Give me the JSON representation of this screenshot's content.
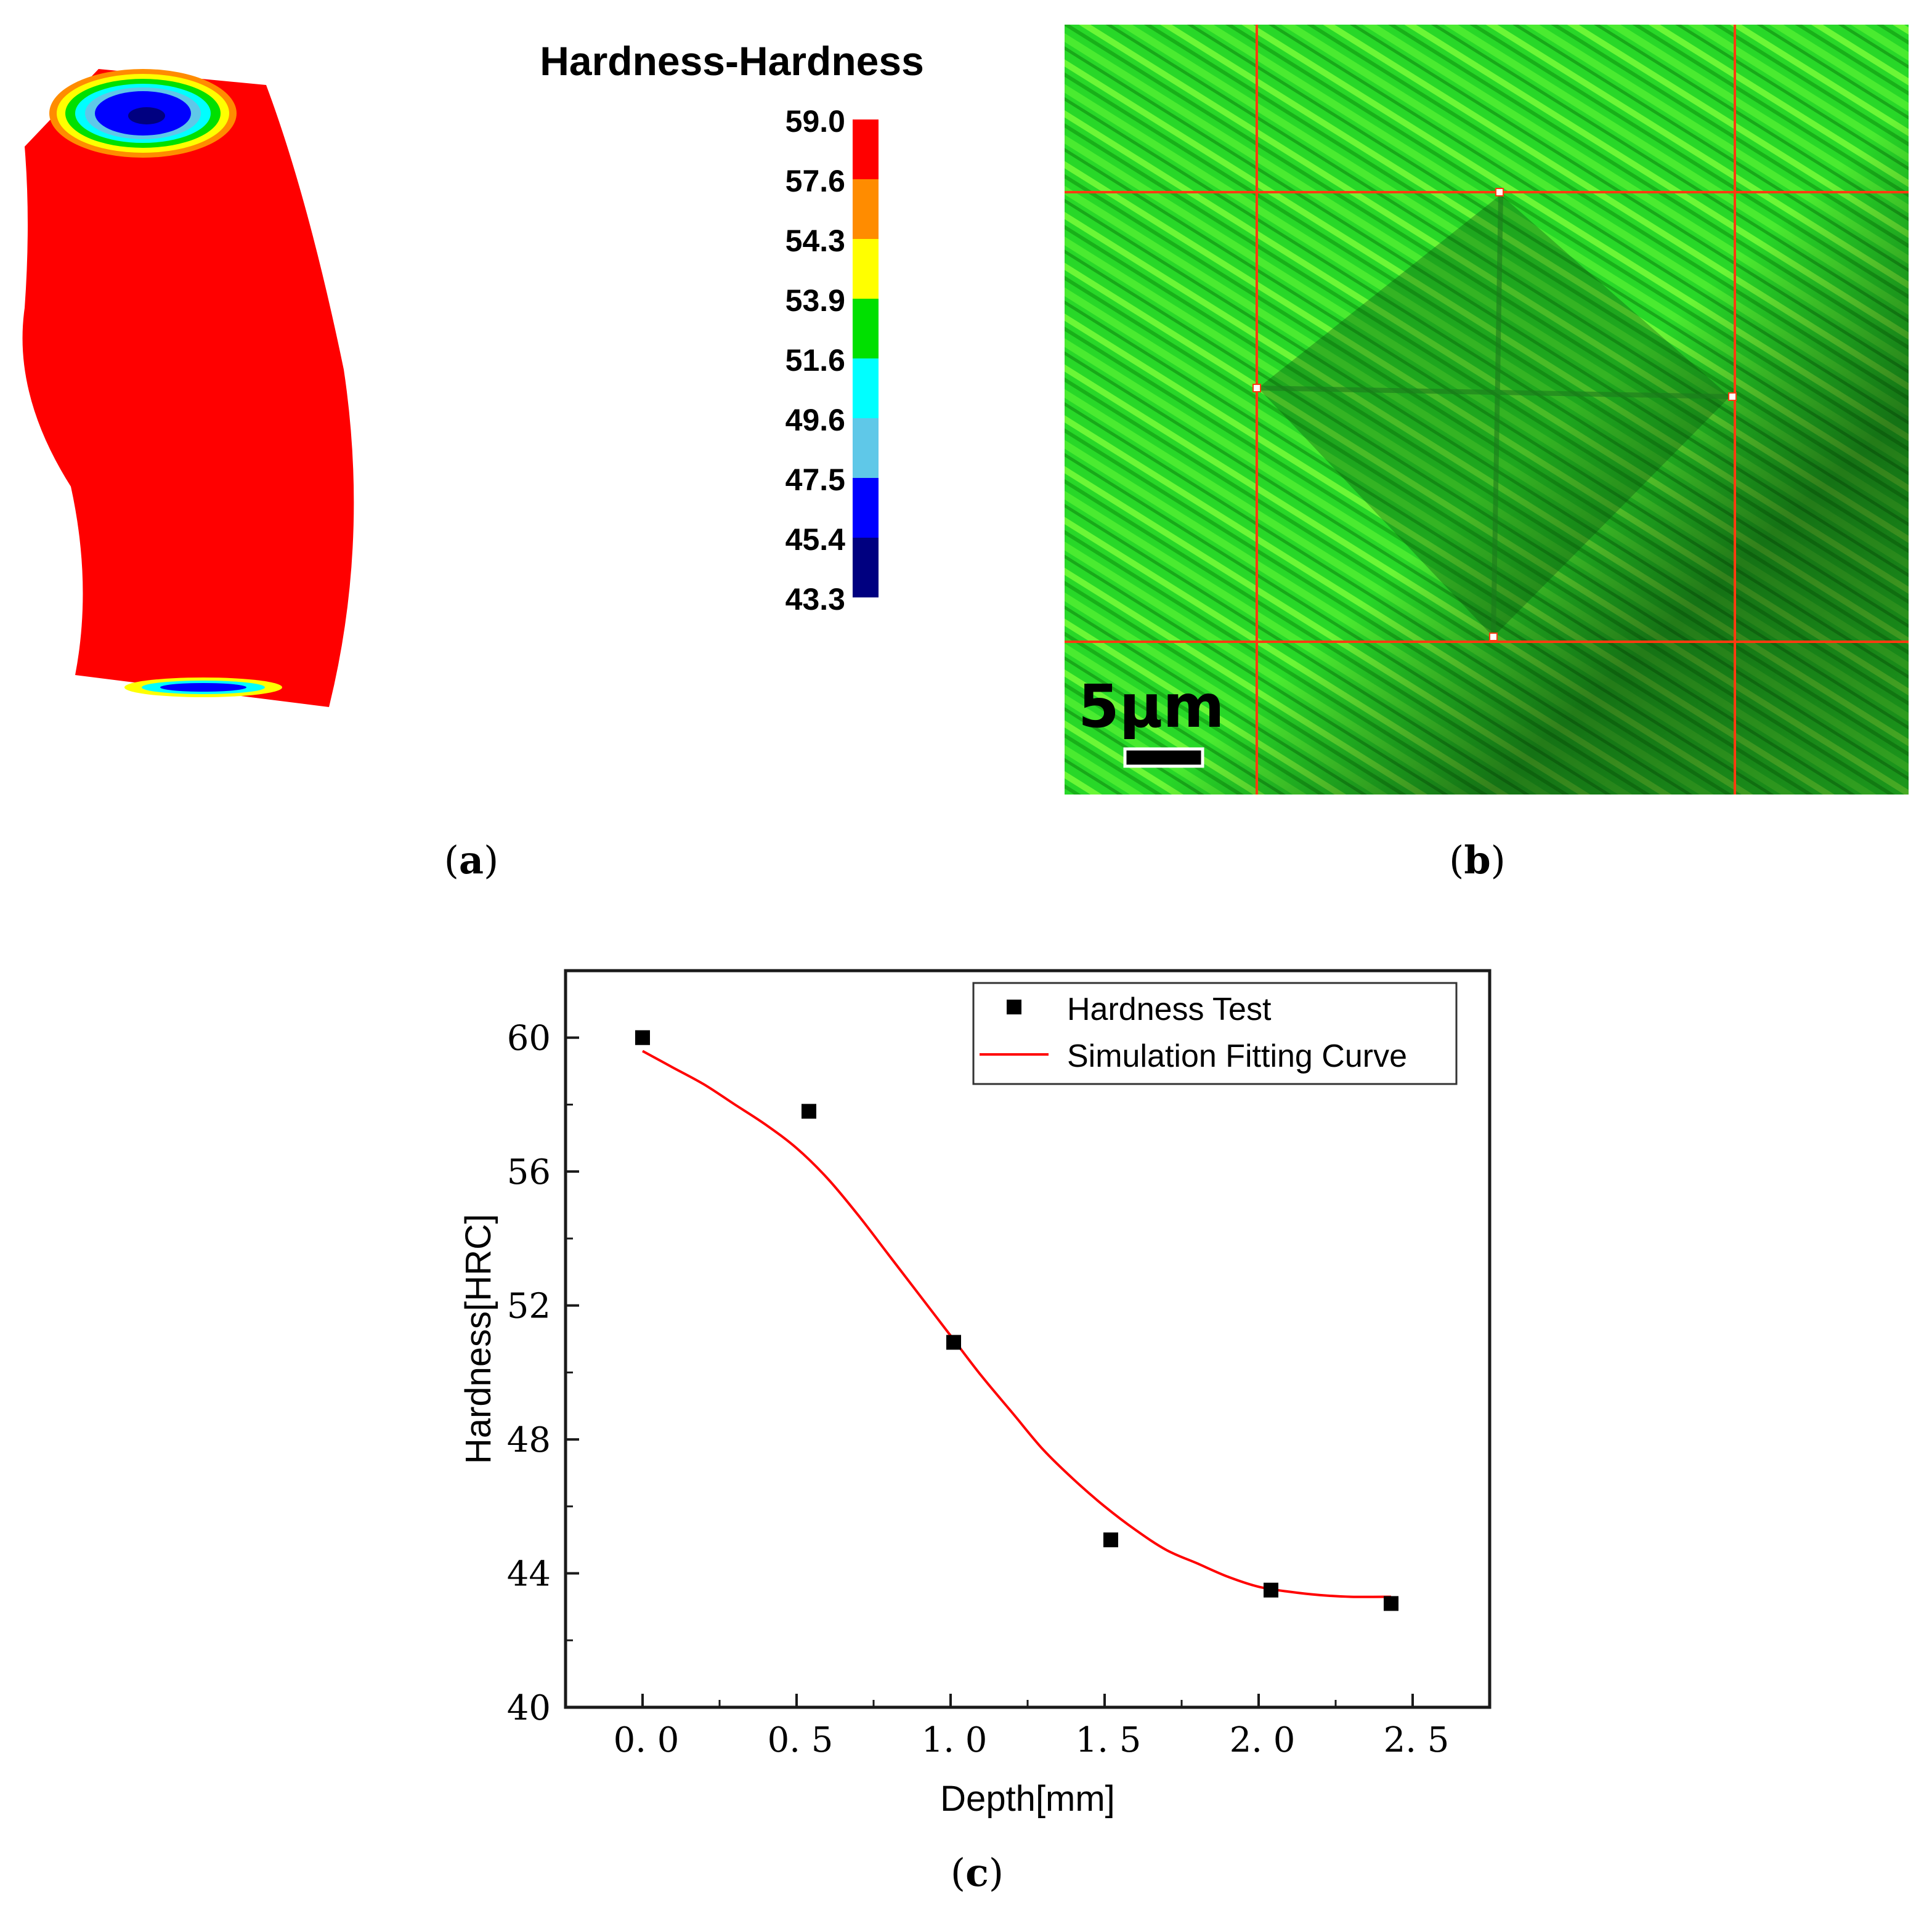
{
  "panel_a": {
    "caption": "a",
    "legend_title": "Hardness-Hardness",
    "legend_labels": [
      "59.0",
      "57.6",
      "54.3",
      "53.9",
      "51.6",
      "49.6",
      "47.5",
      "45.4",
      "43.3"
    ],
    "legend_colors": [
      "#ff0000",
      "#ff8c00",
      "#ffff00",
      "#00e000",
      "#00ffff",
      "#5fc8e8",
      "#0000ff",
      "#000080"
    ],
    "part_color": "#ff0000"
  },
  "panel_b": {
    "caption": "b",
    "scale_bar_label": "5μm",
    "image_color": "#2ee02e",
    "grid_color": "#ff3b10"
  },
  "panel_c": {
    "caption": "c",
    "chart_data": {
      "type": "scatter",
      "xlabel": "Depth[mm]",
      "ylabel": "Hardness[HRC]",
      "xlim": [
        -0.25,
        2.75
      ],
      "ylim": [
        40,
        62
      ],
      "x_ticks": [
        0.0,
        0.5,
        1.0,
        1.5,
        2.0,
        2.5
      ],
      "x_tick_labels": [
        "0. 0",
        "0. 5",
        "1. 0",
        "1. 5",
        "2. 0",
        "2. 5"
      ],
      "y_ticks": [
        40,
        44,
        48,
        52,
        56,
        60
      ],
      "y_tick_labels": [
        "40",
        "44",
        "48",
        "52",
        "56",
        "60"
      ],
      "legend_position": "top-right",
      "series": [
        {
          "name": "Hardness Test",
          "kind": "scatter",
          "color": "#000000",
          "x": [
            0.0,
            0.54,
            1.01,
            1.52,
            2.04,
            2.43
          ],
          "y": [
            60.0,
            57.8,
            50.9,
            45.0,
            43.5,
            43.1
          ]
        },
        {
          "name": "Simulation Fitting Curve",
          "kind": "line",
          "color": "#ff0000",
          "x": [
            0.0,
            0.1,
            0.2,
            0.3,
            0.4,
            0.5,
            0.6,
            0.7,
            0.8,
            0.9,
            1.0,
            1.1,
            1.2,
            1.3,
            1.4,
            1.5,
            1.6,
            1.7,
            1.8,
            1.9,
            2.0,
            2.1,
            2.2,
            2.3,
            2.43
          ],
          "y": [
            59.6,
            59.1,
            58.6,
            58.0,
            57.4,
            56.7,
            55.8,
            54.7,
            53.5,
            52.3,
            51.1,
            49.9,
            48.8,
            47.7,
            46.8,
            46.0,
            45.3,
            44.7,
            44.3,
            43.9,
            43.6,
            43.45,
            43.35,
            43.3,
            43.3
          ]
        }
      ]
    }
  }
}
